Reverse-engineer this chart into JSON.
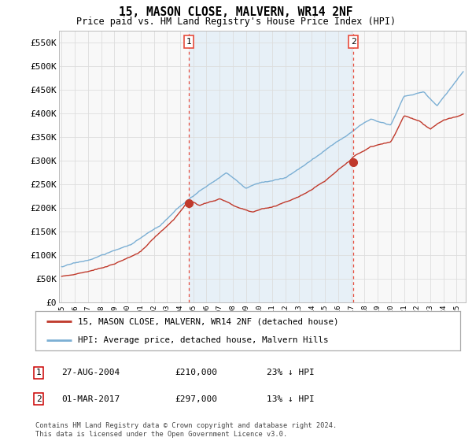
{
  "title": "15, MASON CLOSE, MALVERN, WR14 2NF",
  "subtitle": "Price paid vs. HM Land Registry's House Price Index (HPI)",
  "ylim": [
    0,
    575000
  ],
  "yticks": [
    0,
    50000,
    100000,
    150000,
    200000,
    250000,
    300000,
    350000,
    400000,
    450000,
    500000,
    550000
  ],
  "ytick_labels": [
    "£0",
    "£50K",
    "£100K",
    "£150K",
    "£200K",
    "£250K",
    "£300K",
    "£350K",
    "£400K",
    "£450K",
    "£500K",
    "£550K"
  ],
  "hpi_color": "#7bafd4",
  "hpi_fill_color": "#daeaf7",
  "price_color": "#c0392b",
  "vline_color": "#e74c3c",
  "marker_color": "#c0392b",
  "grid_color": "#dddddd",
  "bg_color": "#f8f8f8",
  "legend_label_red": "15, MASON CLOSE, MALVERN, WR14 2NF (detached house)",
  "legend_label_blue": "HPI: Average price, detached house, Malvern Hills",
  "annotation1_date": "27-AUG-2004",
  "annotation1_price": "£210,000",
  "annotation1_hpi": "23% ↓ HPI",
  "annotation2_date": "01-MAR-2017",
  "annotation2_price": "£297,000",
  "annotation2_hpi": "13% ↓ HPI",
  "footer": "Contains HM Land Registry data © Crown copyright and database right 2024.\nThis data is licensed under the Open Government Licence v3.0.",
  "sale1_x": 2004.646,
  "sale1_y": 210000,
  "sale2_x": 2017.164,
  "sale2_y": 297000,
  "xmin": 1994.8,
  "xmax": 2025.7,
  "n_points": 370
}
